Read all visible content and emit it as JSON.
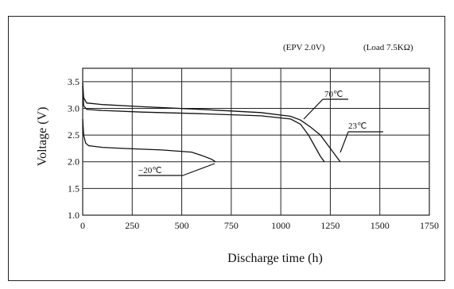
{
  "chart_data": {
    "type": "line",
    "title": "",
    "xlabel": "Discharge time (h)",
    "ylabel": "Voltage (V)",
    "xlim": [
      0,
      1750
    ],
    "ylim": [
      1.0,
      3.75
    ],
    "x_ticks": [
      "0",
      "250",
      "500",
      "750",
      "1000",
      "1250",
      "1500",
      "1750"
    ],
    "y_ticks": [
      "1.0",
      "1.5",
      "2.0",
      "2.5",
      "3.0",
      "3.5"
    ],
    "x_tick_values": [
      0,
      250,
      500,
      750,
      1000,
      1250,
      1500,
      1750
    ],
    "y_tick_values": [
      1.0,
      1.5,
      2.0,
      2.5,
      3.0,
      3.5
    ],
    "grid": true,
    "notes": [
      "(EPV 2.0V)",
      "(Load 7.5KΩ)"
    ],
    "series": [
      {
        "name": "70℃",
        "x": [
          0,
          5,
          20,
          100,
          300,
          600,
          900,
          1050,
          1100,
          1140,
          1170,
          1200,
          1220
        ],
        "y": [
          3.42,
          3.05,
          2.98,
          2.96,
          2.93,
          2.9,
          2.86,
          2.8,
          2.7,
          2.5,
          2.3,
          2.1,
          2.0
        ]
      },
      {
        "name": "23℃",
        "x": [
          0,
          5,
          20,
          100,
          300,
          600,
          900,
          1050,
          1100,
          1150,
          1200,
          1240,
          1270,
          1300
        ],
        "y": [
          3.48,
          3.2,
          3.1,
          3.07,
          3.03,
          2.98,
          2.92,
          2.85,
          2.78,
          2.65,
          2.5,
          2.3,
          2.15,
          2.0
        ]
      },
      {
        "name": "−20℃",
        "x": [
          0,
          5,
          15,
          30,
          100,
          200,
          400,
          550,
          600,
          650,
          670
        ],
        "y": [
          2.8,
          2.5,
          2.35,
          2.3,
          2.27,
          2.25,
          2.22,
          2.18,
          2.12,
          2.05,
          2.0
        ]
      }
    ]
  }
}
